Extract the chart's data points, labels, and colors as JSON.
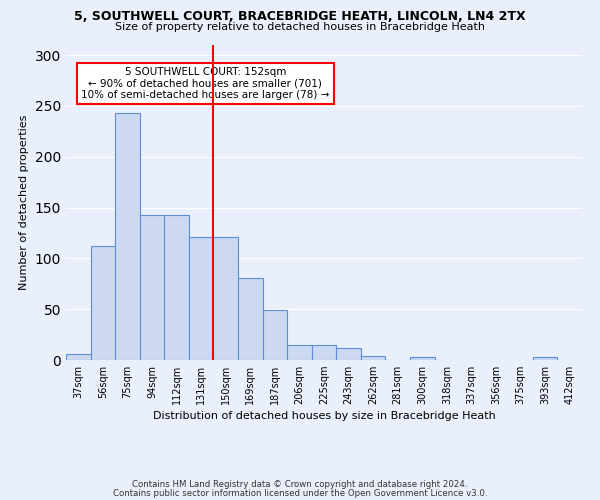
{
  "title1": "5, SOUTHWELL COURT, BRACEBRIDGE HEATH, LINCOLN, LN4 2TX",
  "title2": "Size of property relative to detached houses in Bracebridge Heath",
  "xlabel": "Distribution of detached houses by size in Bracebridge Heath",
  "ylabel": "Number of detached properties",
  "footnote1": "Contains HM Land Registry data © Crown copyright and database right 2024.",
  "footnote2": "Contains public sector information licensed under the Open Government Licence v3.0.",
  "categories": [
    "37sqm",
    "56sqm",
    "75sqm",
    "94sqm",
    "112sqm",
    "131sqm",
    "150sqm",
    "169sqm",
    "187sqm",
    "206sqm",
    "225sqm",
    "243sqm",
    "262sqm",
    "281sqm",
    "300sqm",
    "318sqm",
    "337sqm",
    "356sqm",
    "375sqm",
    "393sqm",
    "412sqm"
  ],
  "values": [
    6,
    112,
    243,
    143,
    143,
    121,
    121,
    81,
    49,
    15,
    15,
    12,
    4,
    0,
    3,
    0,
    0,
    0,
    0,
    3,
    0
  ],
  "bar_color": "#ccd9f0",
  "bar_edge_color": "#5b8ed6",
  "reference_line_color": "red",
  "annotation_title": "5 SOUTHWELL COURT: 152sqm",
  "annotation_line1": "← 90% of detached houses are smaller (701)",
  "annotation_line2": "10% of semi-detached houses are larger (78) →",
  "annotation_box_color": "#ffffff",
  "annotation_box_edge": "red",
  "ylim": [
    0,
    310
  ],
  "background_color": "#eaf0fb",
  "title1_fontsize": 9,
  "title2_fontsize": 8,
  "ylabel_fontsize": 8,
  "xlabel_fontsize": 8,
  "tick_fontsize": 7
}
